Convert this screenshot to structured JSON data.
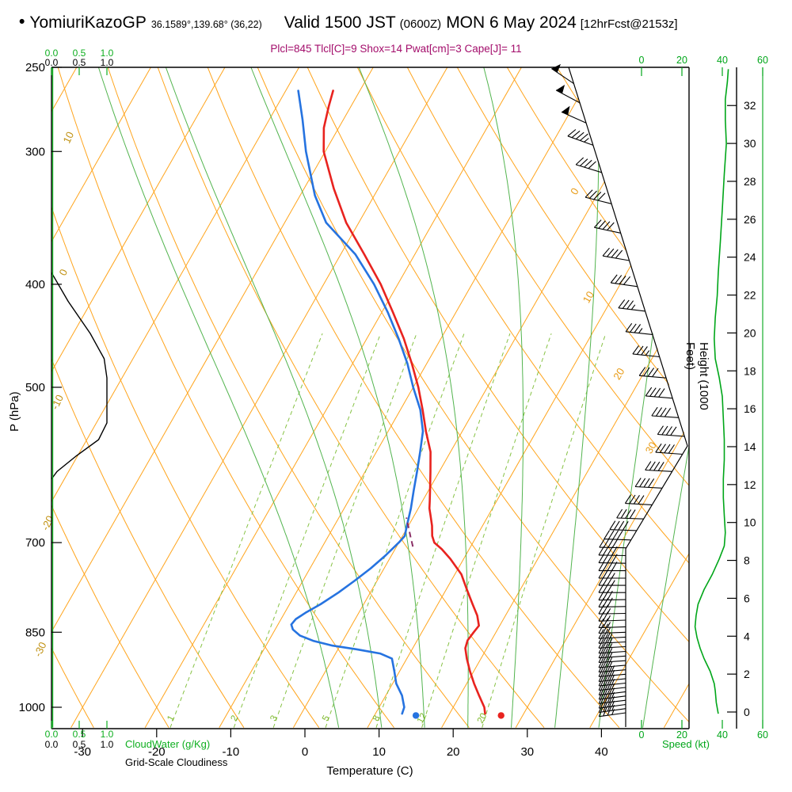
{
  "header": {
    "bullet": "•",
    "station": "YomiuriKazoGP",
    "coords": "36.1589°,139.68° (36,22)",
    "valid_main": "Valid 1500 JST",
    "valid_zulu": "(0600Z)",
    "valid_date": "MON 6 May 2024",
    "forecast_tag": "[12hrFcst@2153z]",
    "params": "Plcl=845 Tlcl[C]=9 Shox=14 Pwat[cm]=3 Cape[J]= 11"
  },
  "axes": {
    "pressure": {
      "title": "P (hPa)",
      "ticks": [
        250,
        300,
        400,
        500,
        700,
        850,
        1000
      ]
    },
    "temperature": {
      "title": "Temperature (C)",
      "ticks": [
        -30,
        -20,
        -10,
        0,
        10,
        20,
        30,
        40
      ]
    },
    "height": {
      "title": "Height (1000 Feet)",
      "ticks": [
        0,
        2,
        4,
        6,
        8,
        10,
        12,
        14,
        16,
        18,
        20,
        22,
        24,
        26,
        28,
        30,
        32
      ]
    },
    "speed": {
      "title": "Speed (kt)",
      "ticks": [
        0,
        20,
        40,
        60
      ]
    },
    "cloudwater": {
      "title": "CloudWater (g/Kg)",
      "scale": [
        "0.0",
        "0.5",
        "1.0"
      ]
    },
    "cloudiness": {
      "title": "Grid-Scale Cloudiness",
      "scale": [
        "0.0",
        "0.5",
        "1.0"
      ]
    }
  },
  "colors": {
    "temperature": "#e8231f",
    "dewpoint": "#2673e0",
    "parcel": "#8a2f66",
    "params_text": "#a30d6b",
    "isotherm": "#ffa41c",
    "adiabat_label": "#c09112",
    "isotherm_label": "#e89b15",
    "mixing": "#86c244",
    "mixing_label": "#7cb82a",
    "moist": "#52b44e",
    "cloudwater": "#0faf20",
    "speed": "#00a619",
    "frame": "#000000"
  },
  "chart_data": {
    "type": "skewt_logp",
    "pressure_range": [
      250,
      1045
    ],
    "grid": {
      "isotherms": {
        "start": -100,
        "end": 60,
        "step": 10
      },
      "dry_adiabats": {
        "start": -40,
        "end": 160,
        "step": 10
      },
      "mixing_ratio_values": [
        1,
        2,
        3,
        5,
        8,
        12,
        20
      ],
      "moist_adiabat_surface_temps": [
        4,
        10,
        16,
        22,
        28,
        34,
        40,
        46
      ],
      "isotherm_labels": [
        {
          "value": 0,
          "p": 330
        },
        {
          "value": 10,
          "p": 415
        },
        {
          "value": 20,
          "p": 490
        },
        {
          "value": 30,
          "p": 575
        }
      ],
      "dry_adiabat_labels": [
        {
          "value": 10,
          "p": 292
        },
        {
          "value": 0,
          "p": 391
        },
        {
          "value": -10,
          "p": 518
        },
        {
          "value": -20,
          "p": 673
        },
        {
          "value": -30,
          "p": 885
        }
      ]
    },
    "temperature_profile": [
      [
        1014,
        24.8
      ],
      [
        1000,
        24.2
      ],
      [
        975,
        22.6
      ],
      [
        950,
        21.0
      ],
      [
        925,
        19.5
      ],
      [
        900,
        18.1
      ],
      [
        880,
        17.1
      ],
      [
        865,
        16.8
      ],
      [
        850,
        17.0
      ],
      [
        838,
        17.2
      ],
      [
        820,
        16.2
      ],
      [
        800,
        14.7
      ],
      [
        775,
        12.8
      ],
      [
        750,
        10.9
      ],
      [
        725,
        8.2
      ],
      [
        710,
        6.3
      ],
      [
        700,
        4.8
      ],
      [
        690,
        4.0
      ],
      [
        675,
        3.2
      ],
      [
        660,
        2.2
      ],
      [
        650,
        1.5
      ],
      [
        640,
        1.0
      ],
      [
        625,
        0.2
      ],
      [
        600,
        -1.2
      ],
      [
        575,
        -2.7
      ],
      [
        550,
        -4.9
      ],
      [
        525,
        -7.0
      ],
      [
        500,
        -9.3
      ],
      [
        475,
        -12.0
      ],
      [
        450,
        -15.0
      ],
      [
        425,
        -18.5
      ],
      [
        400,
        -22.3
      ],
      [
        375,
        -26.8
      ],
      [
        350,
        -31.7
      ],
      [
        325,
        -36.0
      ],
      [
        300,
        -40.2
      ],
      [
        285,
        -42.0
      ],
      [
        272,
        -43.0
      ],
      [
        263,
        -43.6
      ]
    ],
    "dewpoint_profile": [
      [
        1014,
        13.6
      ],
      [
        1000,
        13.4
      ],
      [
        975,
        12.2
      ],
      [
        950,
        10.5
      ],
      [
        925,
        9.3
      ],
      [
        900,
        8.0
      ],
      [
        890,
        6.0
      ],
      [
        882,
        2.5
      ],
      [
        875,
        -1.0
      ],
      [
        866,
        -4.0
      ],
      [
        856,
        -6.2
      ],
      [
        845,
        -7.6
      ],
      [
        836,
        -8.2
      ],
      [
        826,
        -8.0
      ],
      [
        815,
        -7.2
      ],
      [
        800,
        -5.8
      ],
      [
        780,
        -4.3
      ],
      [
        760,
        -3.0
      ],
      [
        740,
        -1.8
      ],
      [
        720,
        -0.8
      ],
      [
        700,
        0.0
      ],
      [
        690,
        0.3
      ],
      [
        675,
        -0.2
      ],
      [
        650,
        -1.0
      ],
      [
        625,
        -2.0
      ],
      [
        600,
        -3.0
      ],
      [
        575,
        -4.1
      ],
      [
        550,
        -5.3
      ],
      [
        525,
        -7.3
      ],
      [
        500,
        -10.0
      ],
      [
        475,
        -12.6
      ],
      [
        450,
        -15.7
      ],
      [
        425,
        -19.2
      ],
      [
        400,
        -23.2
      ],
      [
        375,
        -28.0
      ],
      [
        350,
        -34.4
      ],
      [
        330,
        -38.0
      ],
      [
        300,
        -42.6
      ],
      [
        280,
        -45.5
      ],
      [
        263,
        -48.3
      ]
    ],
    "parcel_segment": [
      [
        706,
        2.2
      ],
      [
        692,
        1.2
      ],
      [
        678,
        0.2
      ],
      [
        663,
        -0.9
      ]
    ],
    "surface_markers": {
      "p": 1018,
      "temperature": 27.1,
      "dewpoint": 15.6
    },
    "cloudiness_profile": [
      [
        390,
        0.0
      ],
      [
        415,
        0.3
      ],
      [
        445,
        0.7
      ],
      [
        470,
        0.95
      ],
      [
        490,
        1.0
      ],
      [
        540,
        1.0
      ],
      [
        560,
        0.85
      ],
      [
        580,
        0.45
      ],
      [
        600,
        0.1
      ],
      [
        610,
        0.0
      ]
    ],
    "cloudwater_profile": [
      [
        250,
        0.0
      ],
      [
        1045,
        0.0
      ]
    ],
    "wind_speed_profile": [
      [
        1014,
        38
      ],
      [
        990,
        37
      ],
      [
        965,
        36.5
      ],
      [
        950,
        36
      ],
      [
        925,
        34
      ],
      [
        900,
        31
      ],
      [
        880,
        29
      ],
      [
        860,
        27.5
      ],
      [
        840,
        26.5
      ],
      [
        820,
        27
      ],
      [
        800,
        28
      ],
      [
        775,
        31
      ],
      [
        750,
        35
      ],
      [
        725,
        38.5
      ],
      [
        705,
        41
      ],
      [
        685,
        41.5
      ],
      [
        660,
        41
      ],
      [
        635,
        40.5
      ],
      [
        610,
        40.5
      ],
      [
        585,
        41
      ],
      [
        560,
        41
      ],
      [
        535,
        40.5
      ],
      [
        510,
        40
      ],
      [
        490,
        38.5
      ],
      [
        470,
        36.5
      ],
      [
        450,
        36
      ],
      [
        430,
        36.5
      ],
      [
        410,
        37.5
      ],
      [
        390,
        38
      ],
      [
        365,
        39
      ],
      [
        340,
        40
      ],
      [
        315,
        41
      ],
      [
        295,
        42
      ],
      [
        280,
        41.5
      ],
      [
        268,
        41.5
      ],
      [
        258,
        42.5
      ],
      [
        251,
        43
      ]
    ],
    "wind_barbs": [
      [
        1012,
        262,
        35
      ],
      [
        1003,
        262,
        35
      ],
      [
        994,
        262,
        36
      ],
      [
        985,
        263,
        36
      ],
      [
        976,
        263,
        37
      ],
      [
        967,
        263,
        37
      ],
      [
        958,
        264,
        36
      ],
      [
        949,
        264,
        36
      ],
      [
        940,
        264,
        35
      ],
      [
        931,
        265,
        34
      ],
      [
        922,
        265,
        33
      ],
      [
        913,
        265,
        32
      ],
      [
        904,
        266,
        31
      ],
      [
        895,
        266,
        30
      ],
      [
        886,
        266,
        29
      ],
      [
        877,
        267,
        28
      ],
      [
        868,
        267,
        28
      ],
      [
        859,
        267,
        27
      ],
      [
        850,
        268,
        27
      ],
      [
        840,
        268,
        27
      ],
      [
        828,
        268,
        27
      ],
      [
        816,
        269,
        27
      ],
      [
        804,
        269,
        28
      ],
      [
        792,
        269,
        30
      ],
      [
        780,
        270,
        32
      ],
      [
        768,
        270,
        34
      ],
      [
        756,
        270,
        36
      ],
      [
        744,
        270,
        38
      ],
      [
        732,
        271,
        39
      ],
      [
        720,
        271,
        40
      ],
      [
        708,
        271,
        41
      ],
      [
        696,
        272,
        41
      ],
      [
        682,
        272,
        41
      ],
      [
        665,
        272,
        41
      ],
      [
        645,
        273,
        40
      ],
      [
        622,
        273,
        40
      ],
      [
        600,
        273,
        40
      ],
      [
        578,
        274,
        41
      ],
      [
        556,
        274,
        41
      ],
      [
        534,
        274,
        40
      ],
      [
        512,
        275,
        40
      ],
      [
        490,
        275,
        38
      ],
      [
        468,
        276,
        37
      ],
      [
        446,
        276,
        36
      ],
      [
        424,
        277,
        37
      ],
      [
        402,
        278,
        38
      ],
      [
        380,
        280,
        39
      ],
      [
        358,
        282,
        40
      ],
      [
        336,
        284,
        41
      ],
      [
        314,
        287,
        42
      ],
      [
        296,
        290,
        45
      ],
      [
        282,
        294,
        48
      ],
      [
        270,
        298,
        50
      ],
      [
        259,
        304,
        52
      ]
    ]
  }
}
